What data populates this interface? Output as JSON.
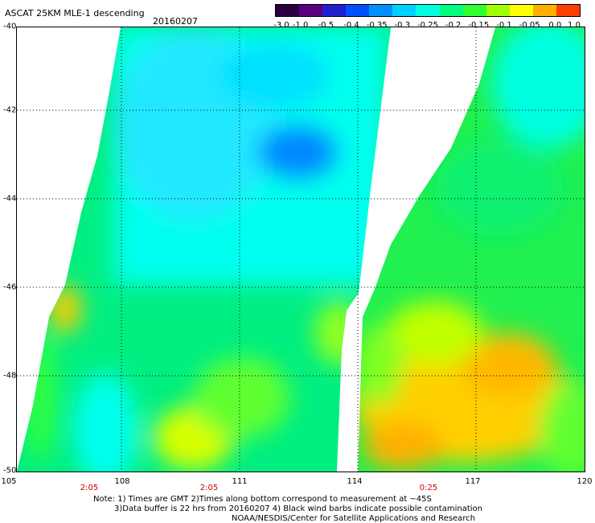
{
  "header": {
    "title": "ASCAT 25KM MLE-1 descending",
    "date": "20160207"
  },
  "colorbar": {
    "labels": [
      "-3.0",
      "-1.0",
      "-0.5",
      "-0.4",
      "-0.35",
      "-0.3",
      "-0.25",
      "-0.2",
      "-0.15",
      "-0.1",
      "-0.05",
      "0.0",
      "1.0"
    ],
    "colors": [
      "#2a0040",
      "#5a0080",
      "#2020d0",
      "#0050ff",
      "#0090ff",
      "#00d0ff",
      "#00ffe0",
      "#00ff80",
      "#30ff30",
      "#a0ff00",
      "#ffff00",
      "#ffb000",
      "#ff4000"
    ]
  },
  "axes": {
    "x_ticks": [
      "105",
      "108",
      "111",
      "114",
      "117",
      "120"
    ],
    "y_ticks": [
      "-40",
      "-42",
      "-44",
      "-46",
      "-48",
      "-50"
    ],
    "time_labels": [
      "2:05",
      "2:05",
      "0:25"
    ]
  },
  "notes": {
    "line1": "Note: 1) Times are GMT 2)Times along bottom correspond to measurement at ~45S",
    "line2": "3)Data buffer is 22 hrs from 20160207 4) Black wind barbs indicate possible contamination",
    "line3": "NOAA/NESDIS/Center for Satellite Applications and Research"
  }
}
